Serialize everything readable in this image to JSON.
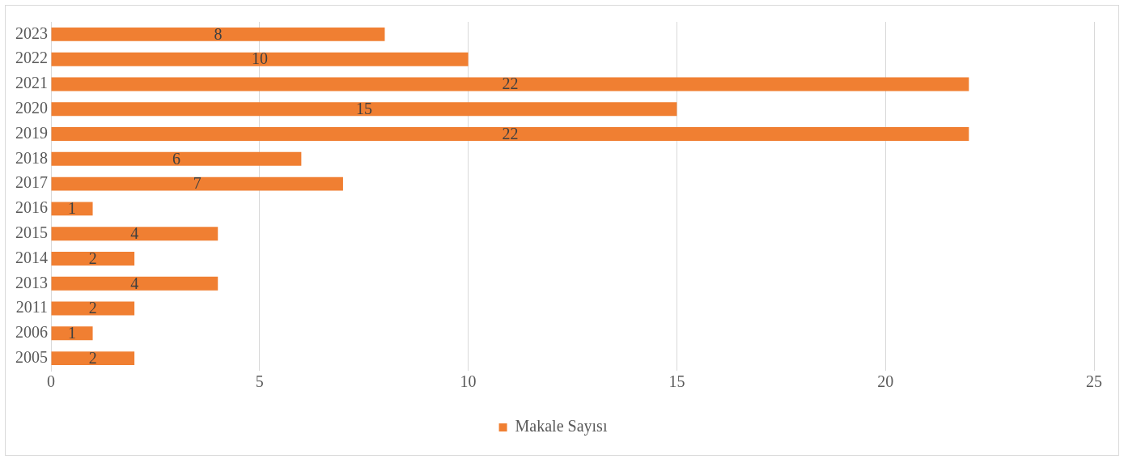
{
  "chart_data": {
    "type": "bar",
    "orientation": "horizontal",
    "categories": [
      "2023",
      "2022",
      "2021",
      "2020",
      "2019",
      "2018",
      "2017",
      "2016",
      "2015",
      "2014",
      "2013",
      "2011",
      "2006",
      "2005"
    ],
    "series": [
      {
        "name": "Makale Sayısı",
        "color": "#f07f32",
        "values": [
          8,
          10,
          22,
          15,
          22,
          6,
          7,
          1,
          4,
          2,
          4,
          2,
          1,
          2
        ]
      }
    ],
    "xlim": [
      0,
      25
    ],
    "xticks": [
      0,
      5,
      10,
      15,
      20,
      25
    ],
    "grid": "x",
    "legend": "bottom",
    "data_labels": true
  }
}
